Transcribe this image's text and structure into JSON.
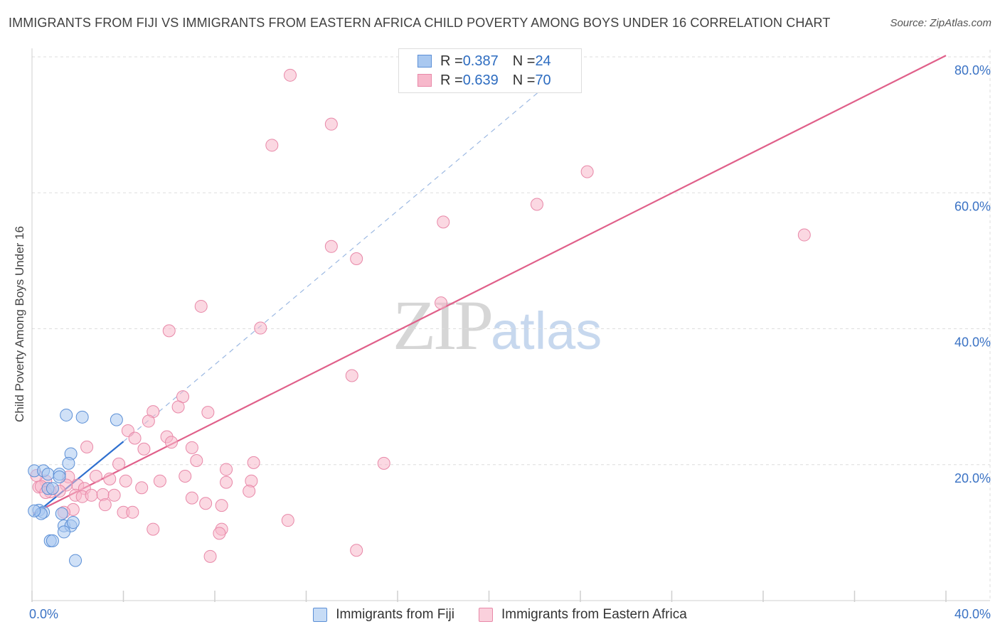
{
  "header": {
    "title": "IMMIGRANTS FROM FIJI VS IMMIGRANTS FROM EASTERN AFRICA CHILD POVERTY AMONG BOYS UNDER 16 CORRELATION CHART",
    "source": "Source: ZipAtlas.com"
  },
  "watermark": {
    "zip": "ZIP",
    "atlas": "atlas"
  },
  "legend": {
    "fiji": {
      "r_label": "R = ",
      "r_value": "0.387",
      "n_label": "N = ",
      "n_value": "24"
    },
    "eastern_africa": {
      "r_label": "R = ",
      "r_value": "0.639",
      "n_label": "N = ",
      "n_value": "70"
    }
  },
  "colors": {
    "fiji_fill": "#a9c8f0",
    "fiji_stroke": "#5b8fd6",
    "fiji_line": "#2e6fcf",
    "ea_fill": "#f7b8cb",
    "ea_stroke": "#e888a8",
    "ea_line": "#e0608a",
    "grid": "#dddddd",
    "axis_label": "#3a72c4"
  },
  "chart_data": {
    "type": "scatter",
    "title": "IMMIGRANTS FROM FIJI VS IMMIGRANTS FROM EASTERN AFRICA CHILD POVERTY AMONG BOYS UNDER 16 CORRELATION CHART",
    "xlabel": "",
    "ylabel": "Child Poverty Among Boys Under 16",
    "xlim": [
      0,
      40
    ],
    "ylim": [
      0,
      80
    ],
    "x_tick_labels": [
      "0.0%",
      "40.0%"
    ],
    "y_ticks": [
      {
        "value": 20,
        "label": "20.0%"
      },
      {
        "value": 40,
        "label": "40.0%"
      },
      {
        "value": 60,
        "label": "60.0%"
      },
      {
        "value": 80,
        "label": "80.0%"
      }
    ],
    "series": [
      {
        "name": "Immigrants from Fiji",
        "color": "#a9c8f0",
        "points": [
          [
            0.1,
            19.1
          ],
          [
            0.5,
            19.1
          ],
          [
            0.7,
            18.6
          ],
          [
            1.2,
            18.6
          ],
          [
            1.2,
            18.2
          ],
          [
            0.7,
            16.5
          ],
          [
            0.9,
            16.5
          ],
          [
            1.7,
            21.6
          ],
          [
            1.6,
            20.2
          ],
          [
            1.5,
            27.3
          ],
          [
            2.2,
            27.0
          ],
          [
            3.7,
            26.6
          ],
          [
            0.3,
            13.3
          ],
          [
            0.5,
            13.0
          ],
          [
            0.4,
            12.8
          ],
          [
            1.3,
            12.8
          ],
          [
            1.4,
            11.0
          ],
          [
            1.7,
            11.0
          ],
          [
            1.8,
            11.5
          ],
          [
            1.4,
            10.1
          ],
          [
            0.8,
            8.8
          ],
          [
            0.9,
            8.8
          ],
          [
            1.9,
            5.9
          ],
          [
            0.1,
            13.2
          ]
        ],
        "trend": {
          "x": [
            0.05,
            4.0
          ],
          "y": [
            12.5,
            23.4
          ],
          "style": "solid"
        },
        "trend_extension": {
          "x": [
            4.0,
            24.0
          ],
          "y": [
            23.4,
            80.0
          ],
          "style": "dashed"
        }
      },
      {
        "name": "Immigrants from Eastern Africa",
        "color": "#f7b8cb",
        "points": [
          [
            11.3,
            77.3
          ],
          [
            13.1,
            70.1
          ],
          [
            10.5,
            67.0
          ],
          [
            24.3,
            63.1
          ],
          [
            22.1,
            58.3
          ],
          [
            18.0,
            55.7
          ],
          [
            33.8,
            53.8
          ],
          [
            13.1,
            52.1
          ],
          [
            14.2,
            50.3
          ],
          [
            7.4,
            43.3
          ],
          [
            17.9,
            43.8
          ],
          [
            6.0,
            39.7
          ],
          [
            10.0,
            40.1
          ],
          [
            14.0,
            33.1
          ],
          [
            6.6,
            30.0
          ],
          [
            7.7,
            27.7
          ],
          [
            5.3,
            27.8
          ],
          [
            6.4,
            28.5
          ],
          [
            5.1,
            26.4
          ],
          [
            4.2,
            25.0
          ],
          [
            4.5,
            23.9
          ],
          [
            5.9,
            24.1
          ],
          [
            6.1,
            23.3
          ],
          [
            2.4,
            22.6
          ],
          [
            4.9,
            22.3
          ],
          [
            7.0,
            22.5
          ],
          [
            7.2,
            20.6
          ],
          [
            3.8,
            20.1
          ],
          [
            9.7,
            20.3
          ],
          [
            15.4,
            20.2
          ],
          [
            1.6,
            18.2
          ],
          [
            2.8,
            18.3
          ],
          [
            3.4,
            17.9
          ],
          [
            4.1,
            17.6
          ],
          [
            5.6,
            17.6
          ],
          [
            6.7,
            18.3
          ],
          [
            8.5,
            19.3
          ],
          [
            2.0,
            17.0
          ],
          [
            1.5,
            17.0
          ],
          [
            8.5,
            17.4
          ],
          [
            9.6,
            17.6
          ],
          [
            0.6,
            17.6
          ],
          [
            0.3,
            16.7
          ],
          [
            2.3,
            16.5
          ],
          [
            4.8,
            16.6
          ],
          [
            0.8,
            16.0
          ],
          [
            1.2,
            16.1
          ],
          [
            1.9,
            15.5
          ],
          [
            2.2,
            15.3
          ],
          [
            2.6,
            15.5
          ],
          [
            3.1,
            15.6
          ],
          [
            3.6,
            15.5
          ],
          [
            7.0,
            15.1
          ],
          [
            9.5,
            16.1
          ],
          [
            0.4,
            16.8
          ],
          [
            7.6,
            14.3
          ],
          [
            8.3,
            14.0
          ],
          [
            3.2,
            14.1
          ],
          [
            1.8,
            13.4
          ],
          [
            1.4,
            13.0
          ],
          [
            4.0,
            13.0
          ],
          [
            4.4,
            13.0
          ],
          [
            11.2,
            11.8
          ],
          [
            5.3,
            10.5
          ],
          [
            8.3,
            10.5
          ],
          [
            8.2,
            9.9
          ],
          [
            14.2,
            7.4
          ],
          [
            7.8,
            6.5
          ],
          [
            0.2,
            18.4
          ],
          [
            0.6,
            15.9
          ]
        ],
        "trend": {
          "x": [
            0.05,
            40.0
          ],
          "y": [
            12.8,
            80.2
          ],
          "style": "solid"
        }
      }
    ]
  }
}
